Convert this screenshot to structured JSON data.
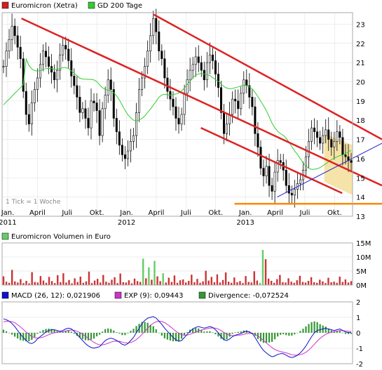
{
  "colors": {
    "price": "#cc2222",
    "gd200": "#33cc33",
    "channel": "#dd2222",
    "support": "#ff8800",
    "trend": "#2222cc",
    "volume": "#cc3333",
    "volume_green": "#66cc66",
    "macd": "#1111cc",
    "exp": "#cc33cc",
    "divergence": "#339933",
    "fill": "#f5e3a9",
    "grid": "#dddddd"
  },
  "chart_data": [
    {
      "type": "line",
      "legend": [
        {
          "name": "Euromicron (Xetra)",
          "color": "#cc2222"
        },
        {
          "name": "GD 200 Tage",
          "color": "#33cc33"
        }
      ],
      "note": "1 Tick = 1 Woche",
      "x_ticks": [
        "Jan.",
        "April",
        "Juli",
        "Okt.",
        "Jan.",
        "April",
        "Juli",
        "Okt.",
        "Jan.",
        "April",
        "Juli",
        "Okt."
      ],
      "x_years": [
        {
          "at": 0,
          "label": "2011"
        },
        {
          "at": 4,
          "label": "2012"
        },
        {
          "at": 8,
          "label": "2013"
        }
      ],
      "y_ticks": [
        "13",
        "14",
        "15",
        "16",
        "17",
        "18",
        "19",
        "20",
        "21",
        "22",
        "23"
      ],
      "ylim": [
        13,
        23.6
      ],
      "weeks": 156,
      "price_close": [
        20.8,
        21.6,
        22.2,
        22.9,
        22.4,
        21.8,
        21.2,
        19.5,
        18.3,
        17.8,
        18.9,
        19.6,
        20.2,
        20.9,
        21.6,
        21.3,
        20.8,
        20.5,
        20.1,
        20.6,
        21.4,
        21.9,
        21.7,
        21.1,
        20.3,
        19.8,
        19.2,
        18.4,
        18.6,
        18.1,
        17.6,
        19.0,
        18.9,
        18.5,
        17.2,
        18.6,
        19.3,
        20.1,
        19.6,
        18.1,
        17.4,
        16.7,
        16.2,
        16.0,
        16.4,
        16.9,
        17.2,
        18.4,
        19.6,
        20.2,
        20.8,
        21.6,
        22.4,
        23.3,
        22.6,
        21.6,
        21.2,
        20.2,
        19.5,
        19.1,
        18.7,
        18.1,
        17.8,
        18.3,
        19.4,
        20.1,
        20.6,
        20.9,
        21.3,
        21.0,
        20.6,
        20.1,
        21.0,
        21.4,
        21.1,
        20.4,
        19.7,
        18.4,
        17.3,
        17.8,
        18.3,
        19.1,
        19.0,
        18.6,
        19.4,
        20.1,
        19.8,
        19.2,
        18.7,
        17.3,
        16.6,
        15.5,
        15.1,
        15.6,
        14.6,
        14.3,
        15.3,
        15.9,
        15.8,
        15.4,
        14.6,
        14.2,
        14.1,
        14.4,
        14.7,
        14.9,
        15.4,
        16.1,
        16.9,
        17.6,
        17.4,
        17.1,
        16.8,
        17.2,
        17.5,
        17.0,
        16.6,
        16.9,
        17.4,
        17.1,
        16.2,
        16.1,
        15.9,
        15.8
      ]
    },
    {
      "type": "bar",
      "title": "Euromicron Volumen in Euro",
      "y_ticks": [
        "0M",
        "5M",
        "10M",
        "15M"
      ],
      "ylim": [
        0,
        15
      ],
      "values": [
        3.1,
        1.2,
        0.8,
        5.4,
        1.3,
        0.9,
        2.1,
        0.7,
        1.5,
        0.6,
        4.6,
        1.1,
        0.9,
        3.2,
        1.6,
        0.8,
        2.9,
        1.4,
        0.7,
        3.5,
        1.0,
        4.2,
        0.9,
        1.8,
        0.6,
        2.4,
        1.1,
        3.0,
        0.8,
        1.3,
        4.8,
        0.7,
        1.6,
        2.2,
        0.9,
        3.6,
        1.2,
        0.8,
        1.9,
        2.8,
        0.7,
        4.1,
        1.0,
        0.9,
        1.7,
        0.6,
        2.3,
        1.4,
        1.1,
        9.4,
        2.4,
        6.3,
        1.9,
        8.6,
        3.1,
        1.4,
        4.2,
        0.9,
        2.6,
        1.1,
        3.4,
        0.8,
        1.7,
        2.0,
        0.9,
        1.5,
        3.7,
        1.0,
        2.2,
        0.8,
        1.3,
        5.1,
        1.6,
        2.9,
        1.0,
        3.8,
        0.9,
        1.8,
        4.5,
        1.2,
        0.8,
        2.7,
        1.0,
        1.4,
        0.7,
        3.2,
        1.1,
        0.9,
        4.9,
        1.6,
        0.8,
        12.5,
        9.2,
        2.3,
        1.5,
        0.8,
        2.1,
        3.6,
        1.0,
        0.9,
        2.4,
        1.2,
        0.8,
        1.7,
        3.3,
        1.1,
        0.9,
        1.5,
        2.8,
        1.0,
        0.8,
        1.9,
        1.3,
        0.7,
        2.6,
        1.0,
        1.2,
        0.8,
        3.0,
        1.1,
        2.0,
        0.9,
        1.4
      ],
      "green_indices": [
        49,
        51,
        53,
        56,
        90,
        91
      ]
    },
    {
      "type": "line",
      "legend": [
        {
          "name": "MACD (26, 12): 0,021906",
          "color": "#1111cc"
        },
        {
          "name": "EXP (9): 0,09443",
          "color": "#cc33cc"
        },
        {
          "name": "Divergence: -0,072524",
          "color": "#339933"
        }
      ],
      "y_ticks": [
        "-2",
        "-1",
        "0",
        "1",
        "2"
      ],
      "ylim": [
        -2,
        2
      ],
      "macd": [
        0.9,
        0.85,
        0.75,
        0.6,
        0.4,
        0.15,
        -0.1,
        -0.3,
        -0.5,
        -0.65,
        -0.7,
        -0.6,
        -0.4,
        -0.25,
        -0.1,
        0.05,
        0.15,
        0.2,
        0.2,
        0.15,
        0.1,
        0.15,
        0.25,
        0.3,
        0.25,
        0.1,
        -0.1,
        -0.3,
        -0.5,
        -0.7,
        -0.85,
        -0.95,
        -1.0,
        -0.95,
        -0.9,
        -0.7,
        -0.5,
        -0.4,
        -0.35,
        -0.4,
        -0.5,
        -0.6,
        -0.75,
        -0.8,
        -0.7,
        -0.5,
        -0.3,
        0.0,
        0.3,
        0.6,
        0.8,
        0.95,
        1.0,
        1.05,
        0.95,
        0.75,
        0.55,
        0.3,
        0.1,
        -0.1,
        -0.3,
        -0.45,
        -0.55,
        -0.5,
        -0.3,
        -0.1,
        0.1,
        0.25,
        0.35,
        0.4,
        0.35,
        0.3,
        0.35,
        0.4,
        0.35,
        0.2,
        0.0,
        -0.25,
        -0.45,
        -0.5,
        -0.4,
        -0.25,
        -0.15,
        -0.1,
        -0.05,
        0.05,
        0.1,
        0.05,
        -0.05,
        -0.3,
        -0.6,
        -0.9,
        -1.15,
        -1.3,
        -1.45,
        -1.55,
        -1.5,
        -1.4,
        -1.35,
        -1.35,
        -1.45,
        -1.55,
        -1.6,
        -1.55,
        -1.45,
        -1.3,
        -1.1,
        -0.85,
        -0.55,
        -0.25,
        0.0,
        0.15,
        0.2,
        0.25,
        0.3,
        0.25,
        0.2,
        0.15,
        0.2,
        0.25,
        0.15,
        0.05,
        0.02,
        0.02
      ],
      "exp": [
        0.7,
        0.75,
        0.75,
        0.72,
        0.65,
        0.52,
        0.38,
        0.22,
        0.05,
        -0.1,
        -0.24,
        -0.32,
        -0.34,
        -0.32,
        -0.28,
        -0.2,
        -0.12,
        -0.05,
        0.0,
        0.04,
        0.06,
        0.08,
        0.12,
        0.16,
        0.18,
        0.16,
        0.1,
        0.02,
        -0.1,
        -0.22,
        -0.36,
        -0.5,
        -0.62,
        -0.72,
        -0.78,
        -0.78,
        -0.74,
        -0.68,
        -0.6,
        -0.55,
        -0.54,
        -0.55,
        -0.6,
        -0.65,
        -0.66,
        -0.63,
        -0.56,
        -0.44,
        -0.28,
        -0.1,
        0.1,
        0.3,
        0.48,
        0.62,
        0.72,
        0.75,
        0.73,
        0.66,
        0.54,
        0.4,
        0.25,
        0.1,
        -0.03,
        -0.12,
        -0.16,
        -0.15,
        -0.1,
        -0.03,
        0.04,
        0.12,
        0.18,
        0.22,
        0.26,
        0.3,
        0.32,
        0.3,
        0.24,
        0.14,
        0.02,
        -0.08,
        -0.15,
        -0.18,
        -0.18,
        -0.16,
        -0.14,
        -0.1,
        -0.06,
        -0.04,
        -0.04,
        -0.1,
        -0.2,
        -0.34,
        -0.5,
        -0.66,
        -0.82,
        -0.96,
        -1.08,
        -1.16,
        -1.22,
        -1.26,
        -1.3,
        -1.36,
        -1.42,
        -1.45,
        -1.45,
        -1.42,
        -1.36,
        -1.26,
        -1.12,
        -0.94,
        -0.74,
        -0.54,
        -0.36,
        -0.22,
        -0.1,
        -0.02,
        0.04,
        0.08,
        0.11,
        0.14,
        0.14,
        0.12,
        0.1,
        0.09
      ]
    }
  ]
}
